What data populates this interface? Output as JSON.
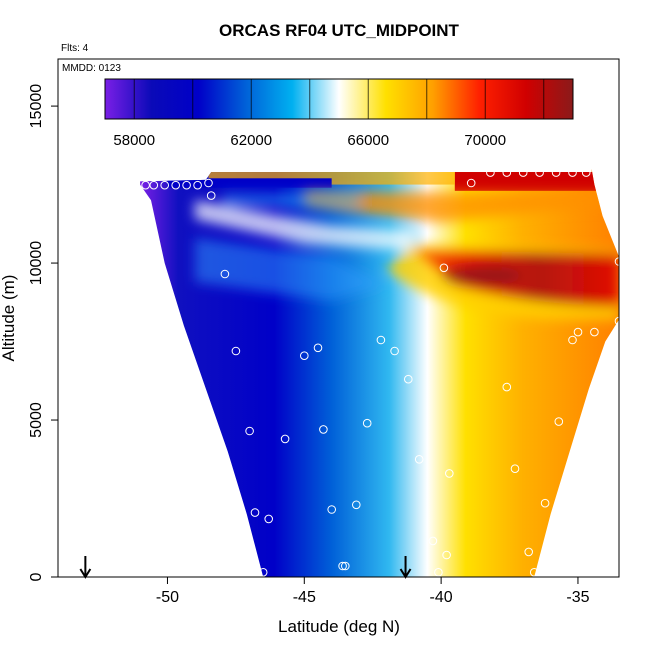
{
  "chart_data": {
    "type": "heatmap",
    "title": "ORCAS RF04 UTC_MIDPOINT",
    "annotation_flights": "Flts: 4",
    "annotation_date": "MMDD: 0123",
    "xlabel": "Latitude (deg N)",
    "ylabel": "Altitude (m)",
    "xlim": [
      -54,
      -33.5
    ],
    "ylim": [
      0,
      16500
    ],
    "x_ticks": [
      -50,
      -45,
      -40,
      -35
    ],
    "x_tick_labels": [
      "-50",
      "-45",
      "-40",
      "-35"
    ],
    "y_ticks": [
      0,
      5000,
      10000,
      15000
    ],
    "y_tick_labels": [
      "0",
      "5000",
      "10000",
      "15000"
    ],
    "colorbar": {
      "placement": "top-inside",
      "range": [
        57000,
        73000
      ],
      "ticks": [
        58000,
        62000,
        66000,
        70000
      ],
      "tick_labels": [
        "58000",
        "62000",
        "66000",
        "70000"
      ],
      "colors": [
        "#7a1fe6",
        "#0a0ab8",
        "#0000c8",
        "#0060d8",
        "#00b0f0",
        "#ffffff",
        "#ffe000",
        "#ffa000",
        "#ff2000",
        "#d00000",
        "#8b1a1a"
      ]
    },
    "field": {
      "description_values_in": "UTC seconds",
      "outline_west_lat_by_alt": [
        [
          0,
          -46.5
        ],
        [
          2000,
          -47.1
        ],
        [
          4000,
          -47.8
        ],
        [
          6000,
          -48.6
        ],
        [
          8000,
          -49.4
        ],
        [
          10000,
          -50.1
        ],
        [
          12000,
          -50.6
        ],
        [
          12500,
          -51.0
        ]
      ],
      "outline_east_lat_by_alt": [
        [
          0,
          -36.6
        ],
        [
          2000,
          -36.0
        ],
        [
          4000,
          -35.3
        ],
        [
          6000,
          -34.6
        ],
        [
          7500,
          -34.0
        ],
        [
          8200,
          -33.5
        ],
        [
          10200,
          -33.5
        ],
        [
          11500,
          -34.1
        ],
        [
          12500,
          -34.4
        ],
        [
          13000,
          -34.5
        ]
      ],
      "top_altitude": 12900
    },
    "markers": {
      "style": "open-circle-white",
      "points": [
        [
          -50.8,
          12480
        ],
        [
          -50.5,
          12480
        ],
        [
          -50.1,
          12480
        ],
        [
          -49.7,
          12480
        ],
        [
          -49.3,
          12480
        ],
        [
          -48.9,
          12480
        ],
        [
          -48.5,
          12550
        ],
        [
          -48.4,
          12150
        ],
        [
          -38.9,
          12550
        ],
        [
          -38.2,
          12880
        ],
        [
          -37.6,
          12880
        ],
        [
          -37.0,
          12880
        ],
        [
          -36.4,
          12880
        ],
        [
          -35.8,
          12880
        ],
        [
          -35.2,
          12880
        ],
        [
          -34.7,
          12880
        ],
        [
          -34.0,
          12250
        ],
        [
          -39.9,
          9850
        ],
        [
          -33.5,
          10050
        ],
        [
          -47.9,
          9650
        ],
        [
          -33.5,
          8150
        ],
        [
          -34.4,
          7800
        ],
        [
          -35.0,
          7800
        ],
        [
          -35.2,
          7550
        ],
        [
          -37.6,
          6050
        ],
        [
          -42.2,
          7550
        ],
        [
          -41.7,
          7200
        ],
        [
          -41.2,
          6300
        ],
        [
          -44.5,
          7300
        ],
        [
          -45.0,
          7050
        ],
        [
          -47.5,
          7200
        ],
        [
          -35.7,
          4950
        ],
        [
          -37.3,
          3450
        ],
        [
          -39.7,
          3300
        ],
        [
          -40.8,
          3750
        ],
        [
          -42.7,
          4900
        ],
        [
          -44.3,
          4700
        ],
        [
          -45.7,
          4400
        ],
        [
          -47.0,
          4650
        ],
        [
          -36.2,
          2350
        ],
        [
          -43.1,
          2300
        ],
        [
          -44.0,
          2150
        ],
        [
          -46.3,
          1850
        ],
        [
          -46.8,
          2050
        ],
        [
          -36.8,
          800
        ],
        [
          -39.8,
          700
        ],
        [
          -40.3,
          1150
        ],
        [
          -43.5,
          350
        ],
        [
          -43.6,
          350
        ],
        [
          -46.5,
          150
        ],
        [
          -40.1,
          150
        ],
        [
          -36.6,
          150
        ]
      ]
    },
    "arrows_lat": [
      -53.0,
      -41.3
    ]
  }
}
